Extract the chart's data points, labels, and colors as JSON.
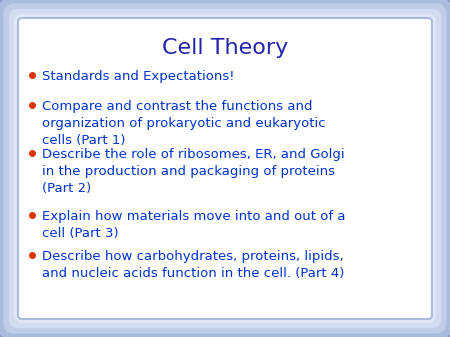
{
  "title": "Cell Theory",
  "title_color": "#2222aa",
  "title_fontsize": 16,
  "bullet_color": "#dd3300",
  "text_color": "#0033cc",
  "bg_color": "#ffffff",
  "border_outer": "#b0bedd",
  "border_inner": "#c8d4ee",
  "bullets": [
    "Standards and Expectations!",
    "Compare and contrast the functions and\norganization of prokaryotic and eukaryotic\ncells (Part 1)",
    "Describe the role of ribosomes, ER, and Golgi\nin the production and packaging of proteins\n(Part 2)",
    "Explain how materials move into and out of a\ncell (Part 3)",
    "Describe how carbohydrates, proteins, lipids,\nand nucleic acids function in the cell. (Part 4)"
  ],
  "bullet_fontsize": 9.5,
  "figsize": [
    4.5,
    3.37
  ],
  "dpi": 100
}
